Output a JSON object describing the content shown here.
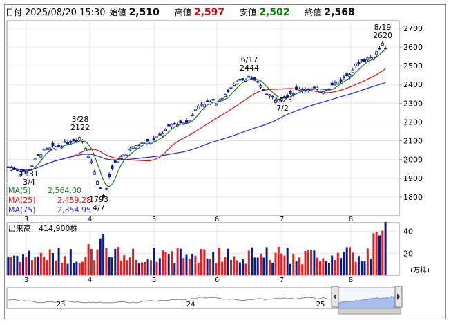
{
  "header": {
    "date_label": "日付",
    "datetime": "2025/08/20 15:30",
    "open_label": "始値",
    "open": "2,510",
    "high_label": "高値",
    "high": "2,597",
    "low_label": "安値",
    "low": "2,502",
    "close_label": "終値",
    "close": "2,568"
  },
  "legend": {
    "ma5": "MA(5)",
    "ma5_val": "2,564.00",
    "ma25": "MA(25)",
    "ma25_val": "2,459.28",
    "ma75": "MA(75)",
    "ma75_val": "2,354.95"
  },
  "volume_header": {
    "label": "出来高",
    "value": "414,900株"
  },
  "volume_unit": "(万株)",
  "annotations": [
    {
      "date": "3/4",
      "price": "1931"
    },
    {
      "date": "3/28",
      "price": "2122"
    },
    {
      "date": "4/7",
      "price": "1793"
    },
    {
      "date": "6/17",
      "price": "2444"
    },
    {
      "date": "7/2",
      "price": "2323"
    },
    {
      "date": "8/19",
      "price": "2620"
    }
  ],
  "month_labels": [
    "3",
    "4",
    "5",
    "6",
    "7",
    "8"
  ],
  "navigator_labels": [
    "23",
    "24",
    "25"
  ],
  "colors": {
    "up": "#ffffff",
    "down": "#0a1a8c",
    "ma5": "#1a7a1a",
    "ma25": "#e01010",
    "ma75": "#1d2be0",
    "vol_up": "#e02020",
    "vol_down": "#0a1a8c",
    "nav_fill": "#8aa8e6"
  },
  "chart_data": {
    "type": "candlestick",
    "price_axis": {
      "ticks": [
        1800,
        1900,
        2000,
        2100,
        2200,
        2300,
        2400,
        2500,
        2600,
        2700
      ],
      "ylim": [
        1700,
        2740
      ]
    },
    "volume_axis": {
      "ticks": [
        20,
        40
      ],
      "unit": "万株",
      "ylim": [
        0,
        48
      ]
    },
    "x_months": [
      "3",
      "4",
      "5",
      "6",
      "7",
      "8"
    ],
    "highlights": {
      "high_2620": "8/19",
      "low_1793": "4/7"
    },
    "ma": {
      "ma5": 2564.0,
      "ma25": 2459.28,
      "ma75": 2354.95
    }
  }
}
